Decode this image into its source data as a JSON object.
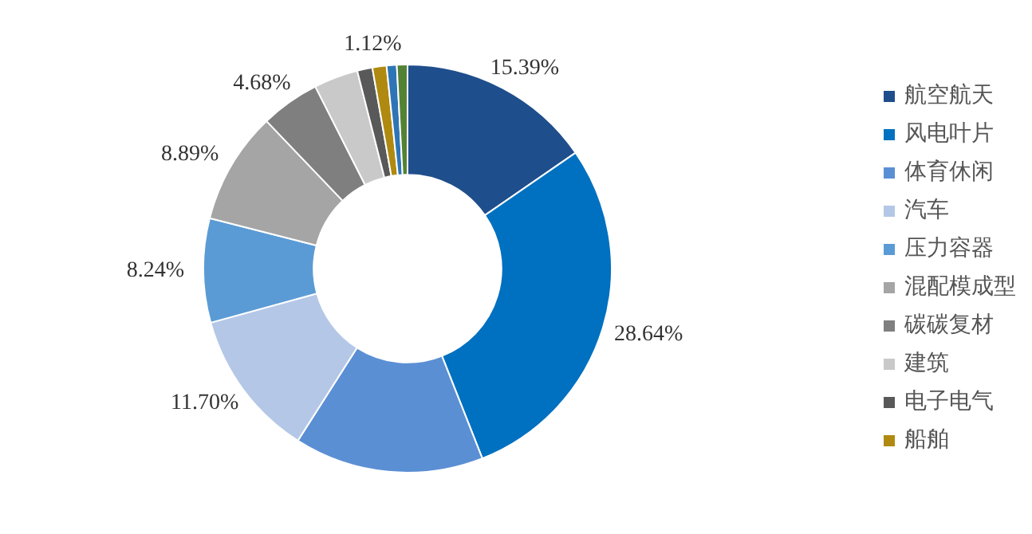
{
  "chart_data": {
    "type": "donut",
    "legend": "right",
    "categories": [
      "航空航天",
      "风电叶片",
      "体育休闲",
      "汽车",
      "压力容器",
      "混配模成型",
      "碳碳复材",
      "建筑",
      "电子电气",
      "船舶",
      null,
      null
    ],
    "values": [
      15.39,
      28.64,
      15.0,
      11.7,
      8.24,
      8.89,
      4.68,
      3.5,
      1.2,
      1.12,
      0.8,
      0.84
    ],
    "colors": [
      "#1f4e8c",
      "#0070c0",
      "#5b8fd4",
      "#b4c7e7",
      "#5b9bd5",
      "#a5a5a5",
      "#7f7f7f",
      "#c9c9c9",
      "#595959",
      "#b08a10",
      "#2e75b6",
      "#548235"
    ],
    "value_labels": [
      "15.39%",
      "28.64%",
      null,
      "11.70%",
      "8.24%",
      "8.89%",
      "4.68%",
      null,
      null,
      "1.12%",
      null,
      null
    ]
  }
}
